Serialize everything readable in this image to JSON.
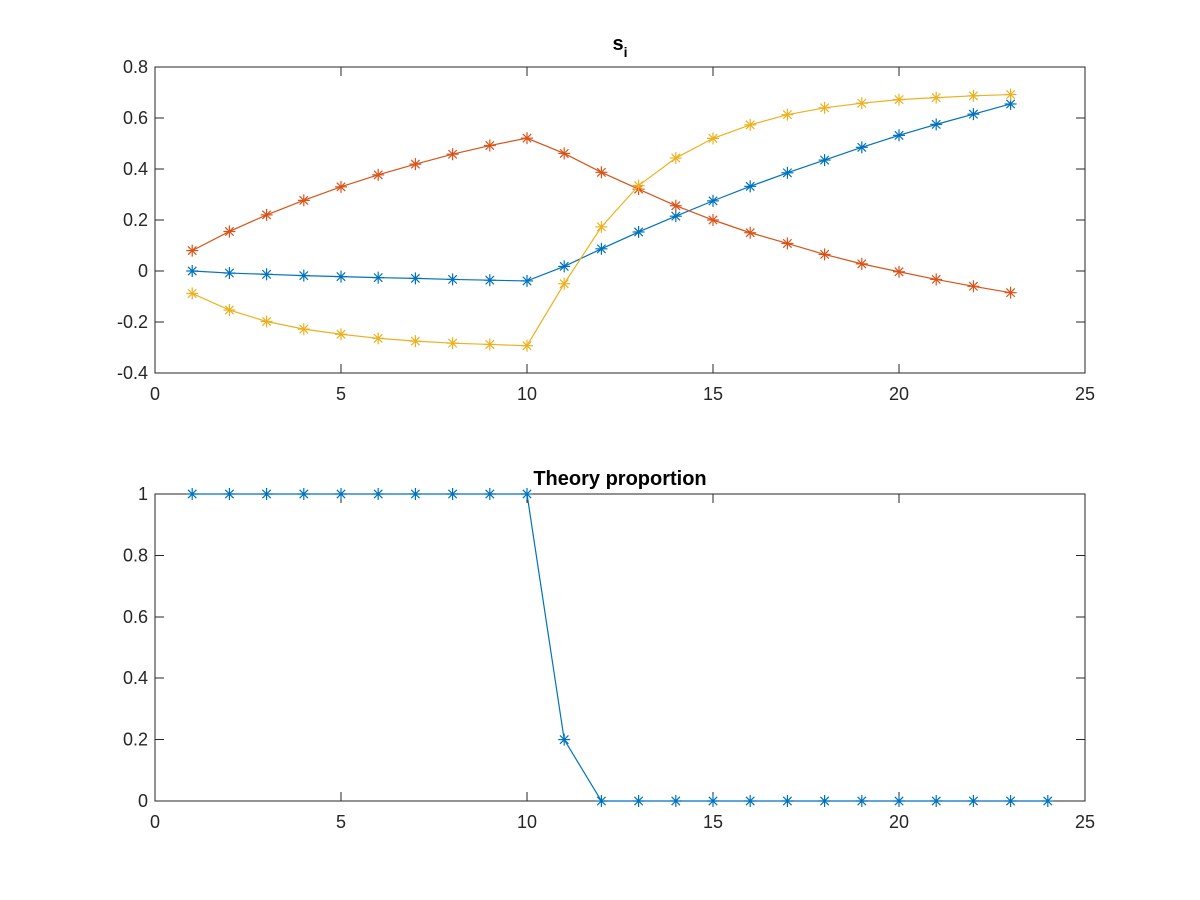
{
  "chart_data": [
    {
      "type": "line",
      "title": "s",
      "title_subscript": "i",
      "xlabel": "",
      "ylabel": "",
      "xlim": [
        0,
        25
      ],
      "ylim": [
        -0.4,
        0.8
      ],
      "xticks": [
        0,
        5,
        10,
        15,
        20,
        25
      ],
      "yticks": [
        -0.4,
        -0.2,
        0,
        0.2,
        0.4,
        0.6,
        0.8
      ],
      "ytick_labels": [
        "-0.4",
        "-0.2",
        "0",
        "0.2",
        "0.4",
        "0.6",
        "0.8"
      ],
      "marker": "asterisk",
      "grid": false,
      "x": [
        1,
        2,
        3,
        4,
        5,
        6,
        7,
        8,
        9,
        10,
        11,
        12,
        13,
        14,
        15,
        16,
        17,
        18,
        19,
        20,
        21,
        22,
        23
      ],
      "series": [
        {
          "color": "#0072BD",
          "values": [
            0.0,
            -0.008,
            -0.013,
            -0.018,
            -0.022,
            -0.026,
            -0.029,
            -0.033,
            -0.036,
            -0.039,
            0.018,
            0.087,
            0.153,
            0.215,
            0.275,
            0.332,
            0.385,
            0.435,
            0.485,
            0.532,
            0.575,
            0.615,
            0.655
          ]
        },
        {
          "color": "#D95319",
          "values": [
            0.08,
            0.155,
            0.22,
            0.277,
            0.33,
            0.377,
            0.419,
            0.458,
            0.492,
            0.521,
            0.461,
            0.387,
            0.321,
            0.256,
            0.2,
            0.15,
            0.108,
            0.065,
            0.028,
            -0.003,
            -0.033,
            -0.06,
            -0.085
          ]
        },
        {
          "color": "#EDB120",
          "values": [
            -0.088,
            -0.153,
            -0.198,
            -0.228,
            -0.248,
            -0.264,
            -0.275,
            -0.283,
            -0.288,
            -0.293,
            -0.05,
            0.173,
            0.335,
            0.443,
            0.52,
            0.573,
            0.613,
            0.64,
            0.658,
            0.672,
            0.68,
            0.687,
            0.692
          ]
        }
      ]
    },
    {
      "type": "line",
      "title": "Theory proportion",
      "xlabel": "",
      "ylabel": "",
      "xlim": [
        0,
        25
      ],
      "ylim": [
        0,
        1
      ],
      "xticks": [
        0,
        5,
        10,
        15,
        20,
        25
      ],
      "yticks": [
        0,
        0.2,
        0.4,
        0.6,
        0.8,
        1
      ],
      "ytick_labels": [
        "0",
        "0.2",
        "0.4",
        "0.6",
        "0.8",
        "1"
      ],
      "marker": "asterisk",
      "grid": false,
      "x": [
        1,
        2,
        3,
        4,
        5,
        6,
        7,
        8,
        9,
        10,
        11,
        12,
        13,
        14,
        15,
        16,
        17,
        18,
        19,
        20,
        21,
        22,
        23,
        24
      ],
      "series": [
        {
          "color": "#0072BD",
          "values": [
            1,
            1,
            1,
            1,
            1,
            1,
            1,
            1,
            1,
            1,
            0.2,
            0,
            0,
            0,
            0,
            0,
            0,
            0,
            0,
            0,
            0,
            0,
            0,
            0
          ]
        }
      ]
    }
  ]
}
